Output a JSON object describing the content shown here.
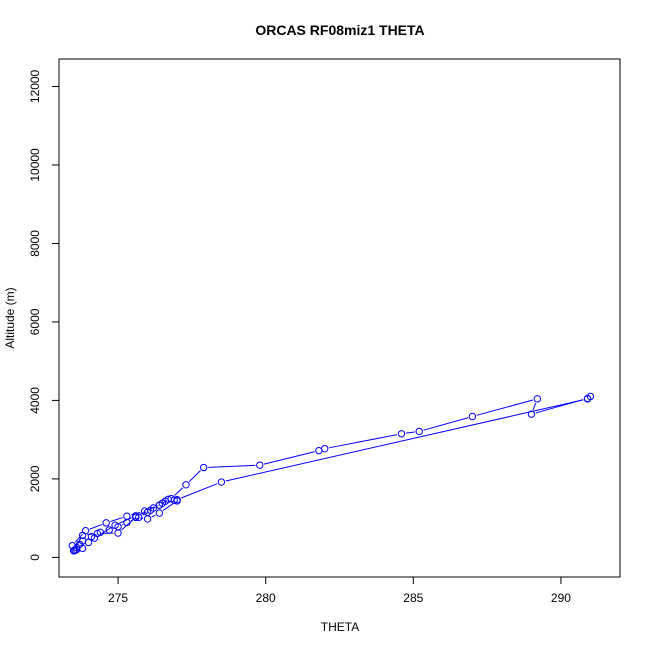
{
  "chart_data": {
    "type": "line",
    "title": "ORCAS RF08miz1 THETA",
    "xlabel": "THETA",
    "ylabel": "Altitude (m)",
    "xlim": [
      273.0,
      292.0
    ],
    "ylim": [
      -500,
      12700
    ],
    "xticks": [
      275,
      280,
      285,
      290
    ],
    "yticks": [
      0,
      2000,
      4000,
      6000,
      8000,
      10000,
      12000
    ],
    "grid": false,
    "legend": "none",
    "colors": {
      "series": "#0000ff",
      "axes": "#000000"
    },
    "series": [
      {
        "marker": "open-circle",
        "x": [
          273.5,
          273.55,
          273.6,
          273.7,
          273.8,
          274.1,
          274.4,
          274.7,
          275.0,
          275.3,
          275.7,
          276.0,
          276.2,
          276.5,
          276.8,
          277.3,
          277.9,
          279.8,
          281.8,
          282.0,
          284.6,
          285.2,
          287.0,
          289.2,
          289.0,
          290.9,
          291.0,
          290.9,
          278.5,
          277.0,
          276.9,
          276.6,
          276.4,
          275.9,
          275.3,
          274.6,
          273.9,
          273.45,
          273.6,
          273.5,
          273.55,
          273.8,
          274.0,
          274.2,
          274.9,
          275.6,
          276.1,
          276.4,
          276.7,
          277.0,
          276.4,
          276.0,
          275.6,
          275.0,
          274.3,
          273.8,
          273.5
        ],
        "y": [
          170,
          180,
          250,
          330,
          420,
          530,
          640,
          700,
          780,
          890,
          1020,
          1150,
          1260,
          1380,
          1500,
          1850,
          2290,
          2350,
          2720,
          2770,
          3150,
          3210,
          3590,
          4040,
          3650,
          4050,
          4100,
          4040,
          1920,
          1470,
          1460,
          1430,
          1330,
          1180,
          1050,
          880,
          680,
          300,
          200,
          170,
          180,
          230,
          380,
          490,
          820,
          1060,
          1200,
          1330,
          1480,
          1440,
          1130,
          980,
          1020,
          620,
          610,
          560,
          170
        ]
      }
    ]
  }
}
